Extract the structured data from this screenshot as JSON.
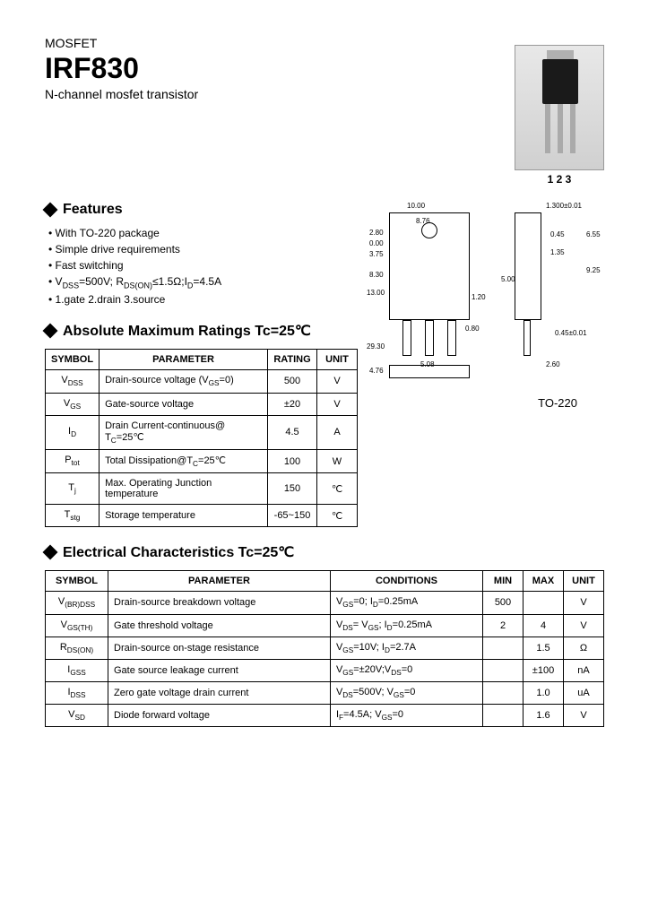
{
  "header": {
    "category": "MOSFET",
    "part_number": "IRF830",
    "subtitle": "N-channel mosfet transistor"
  },
  "pin_labels": "1 2 3",
  "features": {
    "title": "Features",
    "items": [
      "With TO-220 package",
      "Simple drive requirements",
      "Fast switching",
      "Vₒₛₛ=500V; Rₒₛ(ON)≤1.5Ω;Iₒ=4.5A",
      "1.gate 2.drain 3.source"
    ],
    "item_html": [
      "With TO-220 package",
      "Simple drive requirements",
      "Fast switching",
      "V<sub>DSS</sub>=500V; R<sub>DS(ON)</sub>≤1.5Ω;I<sub>D</sub>=4.5A",
      "1.gate 2.drain 3.source"
    ]
  },
  "ratings": {
    "title": "Absolute Maximum Ratings Tc=25℃",
    "columns": [
      "SYMBOL",
      "PARAMETER",
      "RATING",
      "UNIT"
    ],
    "rows": [
      {
        "symbol_html": "V<sub>DSS</sub>",
        "parameter_html": "Drain-source voltage (V<sub>GS</sub>=0)",
        "rating": "500",
        "unit": "V"
      },
      {
        "symbol_html": "V<sub>GS</sub>",
        "parameter_html": "Gate-source voltage",
        "rating": "±20",
        "unit": "V"
      },
      {
        "symbol_html": "I<sub>D</sub>",
        "parameter_html": "Drain Current-continuous@ T<sub>C</sub>=25℃",
        "rating": "4.5",
        "unit": "A"
      },
      {
        "symbol_html": "P<sub>tot</sub>",
        "parameter_html": "Total Dissipation@T<sub>C</sub>=25℃",
        "rating": "100",
        "unit": "W"
      },
      {
        "symbol_html": "T<sub>j</sub>",
        "parameter_html": "Max. Operating Junction temperature",
        "rating": "150",
        "unit": "℃"
      },
      {
        "symbol_html": "T<sub>stg</sub>",
        "parameter_html": "Storage temperature",
        "rating": "-65~150",
        "unit": "℃"
      }
    ]
  },
  "package": {
    "name": "TO-220",
    "dimensions": {
      "width_top": "10.00",
      "width_body": "8.76",
      "h1": "2.80",
      "h2": "0.00",
      "h3": "3.75",
      "h4": "8.30",
      "h5": "13.00",
      "h_total": "29.30",
      "lead_w": "5.08",
      "lead_gap": "0.80",
      "lead_pitch": "1.20",
      "side_top": "1.300±0.01",
      "side_tab": "0.45",
      "side_body": "1.35",
      "side_lead": "2.60",
      "side_lead_h": "0.45±0.01",
      "side_h1": "6.55",
      "side_h2": "9.25",
      "side_h3": "5.00",
      "side_bottom": "4.76"
    }
  },
  "electrical": {
    "title": "Electrical Characteristics Tc=25℃",
    "columns": [
      "SYMBOL",
      "PARAMETER",
      "CONDITIONS",
      "MIN",
      "MAX",
      "UNIT"
    ],
    "rows": [
      {
        "symbol_html": "V<sub>(BR)DSS</sub>",
        "parameter": "Drain-source breakdown voltage",
        "conditions_html": "V<sub>GS</sub>=0; I<sub>D</sub>=0.25mA",
        "min": "500",
        "max": "",
        "unit": "V"
      },
      {
        "symbol_html": "V<sub>GS(TH)</sub>",
        "parameter": "Gate threshold voltage",
        "conditions_html": "V<sub>DS</sub>= V<sub>GS</sub>; I<sub>D</sub>=0.25mA",
        "min": "2",
        "max": "4",
        "unit": "V"
      },
      {
        "symbol_html": "R<sub>DS(ON)</sub>",
        "parameter": "Drain-source on-stage resistance",
        "conditions_html": "V<sub>GS</sub>=10V; I<sub>D</sub>=2.7A",
        "min": "",
        "max": "1.5",
        "unit": "Ω"
      },
      {
        "symbol_html": "I<sub>GSS</sub>",
        "parameter": "Gate source leakage current",
        "conditions_html": "V<sub>GS</sub>=±20V;V<sub>DS</sub>=0",
        "min": "",
        "max": "±100",
        "unit": "nA"
      },
      {
        "symbol_html": "I<sub>DSS</sub>",
        "parameter": "Zero gate voltage drain current",
        "conditions_html": "V<sub>DS</sub>=500V; V<sub>GS</sub>=0",
        "min": "",
        "max": "1.0",
        "unit": "uA"
      },
      {
        "symbol_html": "V<sub>SD</sub>",
        "parameter": "Diode forward voltage",
        "conditions_html": "I<sub>F</sub>=4.5A; V<sub>GS</sub>=0",
        "min": "",
        "max": "1.6",
        "unit": "V"
      }
    ]
  },
  "style": {
    "background": "#ffffff",
    "text_color": "#000000",
    "border_color": "#000000",
    "title_fontsize": 32,
    "section_fontsize": 16,
    "body_fontsize": 13,
    "table_fontsize": 11
  }
}
